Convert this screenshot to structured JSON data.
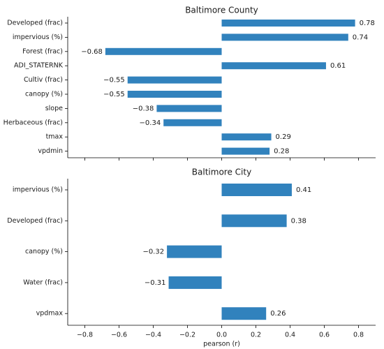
{
  "chart_data": [
    {
      "type": "bar",
      "orientation": "horizontal",
      "title": "Baltimore County",
      "categories": [
        "Developed (frac)",
        "impervious (%)",
        "Forest (frac)",
        "ADI_STATERNK",
        "Cultiv (frac)",
        "canopy (%)",
        "slope",
        "Herbaceous (frac)",
        "tmax",
        "vpdmin"
      ],
      "values": [
        0.78,
        0.74,
        -0.68,
        0.61,
        -0.55,
        -0.55,
        -0.38,
        -0.34,
        0.29,
        0.28
      ],
      "value_labels": [
        "0.78",
        "0.74",
        "−0.68",
        "0.61",
        "−0.55",
        "−0.55",
        "−0.38",
        "−0.34",
        "0.29",
        "0.28"
      ],
      "xlim": [
        -0.9,
        0.9
      ],
      "color": "#3182bd"
    },
    {
      "type": "bar",
      "orientation": "horizontal",
      "title": "Baltimore City",
      "categories": [
        "impervious (%)",
        "Developed (frac)",
        "canopy (%)",
        "Water (frac)",
        "vpdmax"
      ],
      "values": [
        0.41,
        0.38,
        -0.32,
        -0.31,
        0.26
      ],
      "value_labels": [
        "0.41",
        "0.38",
        "−0.32",
        "−0.31",
        "0.26"
      ],
      "xlim": [
        -0.9,
        0.9
      ],
      "xlabel": "pearson (r)",
      "xticks": [
        -0.8,
        -0.6,
        -0.4,
        -0.2,
        0.0,
        0.2,
        0.4,
        0.6,
        0.8
      ],
      "xtick_labels": [
        "−0.8",
        "−0.6",
        "−0.4",
        "−0.2",
        "0.0",
        "0.2",
        "0.4",
        "0.6",
        "0.8"
      ],
      "color": "#3182bd"
    }
  ]
}
